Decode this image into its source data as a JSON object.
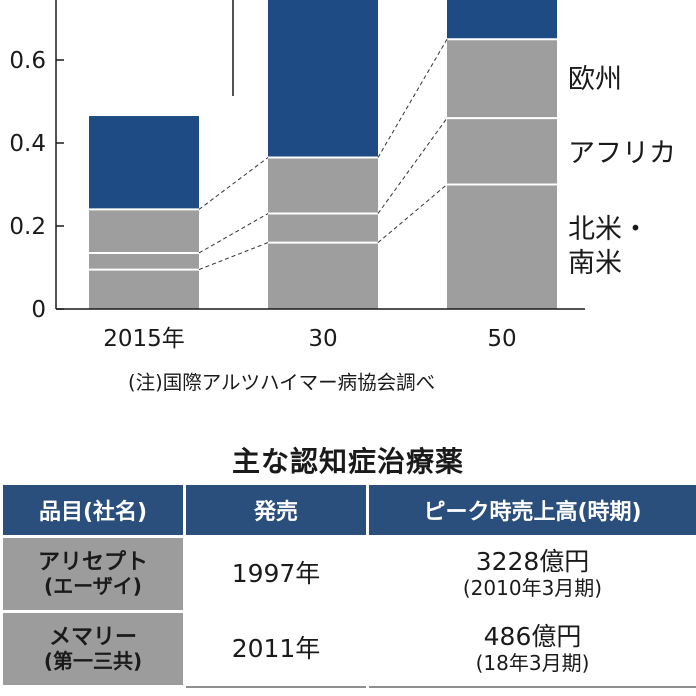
{
  "chart_data": {
    "type": "bar",
    "stacked": true,
    "categories": [
      "2015年",
      "30",
      "50"
    ],
    "y_ticks": [
      "0",
      "0.2",
      "0.4",
      "0.6"
    ],
    "ylim": [
      0,
      0.73
    ],
    "series": [
      {
        "name": "北米・南米",
        "values": [
          0.095,
          0.16,
          0.3
        ],
        "color": "#9e9e9e"
      },
      {
        "name": "アフリカ",
        "values": [
          0.04,
          0.07,
          0.16
        ],
        "color": "#9e9e9e"
      },
      {
        "name": "欧州",
        "values": [
          0.105,
          0.135,
          0.19
        ],
        "color": "#9e9e9e"
      },
      {
        "name": "",
        "values": [
          0.225,
          0.42,
          0.12
        ],
        "color": "#1f4b84"
      }
    ],
    "legend_labels": [
      "欧州",
      "アフリカ",
      "北米・",
      "南米"
    ],
    "source": "(注)国際アルツハイマー病協会調べ"
  },
  "table": {
    "title": "主な認知症治療薬",
    "headers": [
      "品目(社名)",
      "発売",
      "ピーク時売上高(時期)"
    ],
    "rows": [
      {
        "name": "アリセプト",
        "company": "(エーザイ)",
        "launch": "1997年",
        "peak": "3228億円",
        "period": "(2010年3月期)"
      },
      {
        "name": "メマリー",
        "company": "(第一三共)",
        "launch": "2011年",
        "peak": "486億円",
        "period": "(18年3月期)"
      }
    ]
  }
}
